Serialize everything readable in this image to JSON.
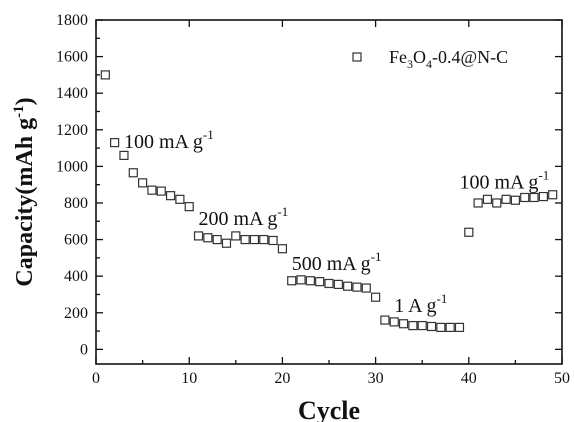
{
  "chart_data": {
    "type": "scatter",
    "title": "",
    "xlabel": "Cycle",
    "ylabel": "Capacity(mAh g-1)",
    "xlim": [
      0,
      50
    ],
    "ylim": [
      -80,
      1800
    ],
    "x_ticks": [
      0,
      10,
      20,
      30,
      40,
      50
    ],
    "y_ticks": [
      0,
      200,
      400,
      600,
      800,
      1000,
      1200,
      1400,
      1600,
      1800
    ],
    "grid": false,
    "legend_position": "top-right",
    "series": [
      {
        "name": "Fe3O4-0.4@N-C",
        "marker": "square-open",
        "color": "#333333",
        "x": [
          1,
          2,
          3,
          4,
          5,
          6,
          7,
          8,
          9,
          10,
          11,
          12,
          13,
          14,
          15,
          16,
          17,
          18,
          19,
          20,
          21,
          22,
          23,
          24,
          25,
          26,
          27,
          28,
          29,
          30,
          31,
          32,
          33,
          34,
          35,
          36,
          37,
          38,
          39,
          40,
          41,
          42,
          43,
          44,
          45,
          46,
          47,
          48,
          49
        ],
        "y": [
          1500,
          1130,
          1060,
          965,
          910,
          870,
          865,
          840,
          820,
          780,
          620,
          610,
          600,
          580,
          620,
          600,
          600,
          600,
          595,
          550,
          375,
          380,
          375,
          370,
          360,
          355,
          345,
          340,
          335,
          285,
          160,
          150,
          140,
          130,
          130,
          125,
          120,
          120,
          120,
          640,
          800,
          820,
          800,
          820,
          815,
          830,
          830,
          835,
          845
        ]
      }
    ],
    "annotations": [
      {
        "id": "annot-100a",
        "text": "100 mA g",
        "sup": "-1",
        "at": [
          3,
          1100
        ]
      },
      {
        "id": "annot-200",
        "text": "200 mA g",
        "sup": "-1",
        "at": [
          11,
          680
        ]
      },
      {
        "id": "annot-500",
        "text": "500 mA g",
        "sup": "-1",
        "at": [
          21,
          435
        ]
      },
      {
        "id": "annot-1a",
        "text": "1 A g",
        "sup": "-1",
        "at": [
          32,
          205
        ]
      },
      {
        "id": "annot-100b",
        "text": "100 mA g",
        "sup": "-1",
        "at": [
          39,
          880
        ]
      }
    ]
  }
}
